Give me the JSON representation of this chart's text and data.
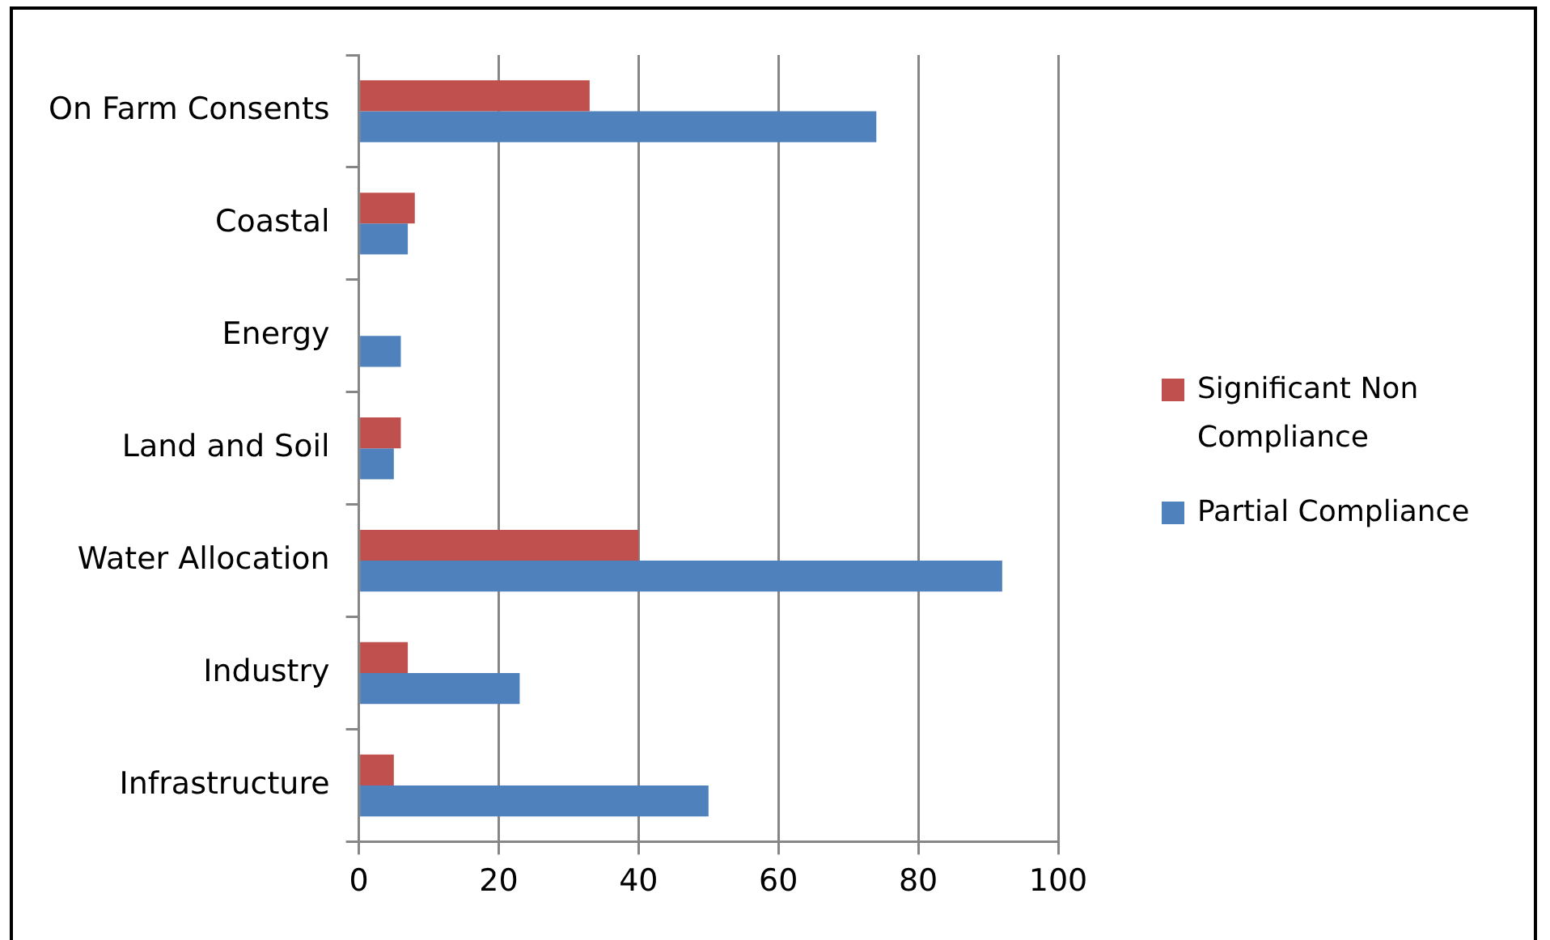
{
  "chart_data": {
    "type": "bar",
    "orientation": "horizontal",
    "categories": [
      "On Farm Consents",
      "Coastal",
      "Energy",
      "Land and Soil",
      "Water Allocation",
      "Industry",
      "Infrastructure"
    ],
    "series": [
      {
        "name": "Significant Non Compliance",
        "color": "#c0504d",
        "values": [
          33,
          8,
          0,
          6,
          40,
          7,
          5
        ]
      },
      {
        "name": "Partial Compliance",
        "color": "#4f81bd",
        "values": [
          74,
          7,
          6,
          5,
          92,
          23,
          50
        ]
      }
    ],
    "xlim": [
      0,
      100
    ],
    "xticks": [
      0,
      20,
      40,
      60,
      80,
      100
    ],
    "grid": "x",
    "legend": "right"
  }
}
